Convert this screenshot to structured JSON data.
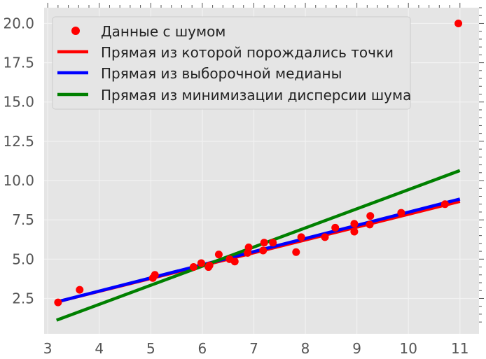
{
  "chart_data": {
    "type": "scatter",
    "title": "",
    "xlabel": "",
    "ylabel": "",
    "xlim": [
      2.93,
      11.37
    ],
    "ylim": [
      0.25,
      21.0
    ],
    "grid": true,
    "legend_placement": "top-left",
    "background_color": "#e5e5e5",
    "grid_color": "#f2f2f2",
    "x_ticks": [
      3,
      4,
      5,
      6,
      7,
      8,
      9,
      10,
      11
    ],
    "y_ticks": [
      2.5,
      5.0,
      7.5,
      10.0,
      12.5,
      15.0,
      17.5,
      20.0
    ],
    "x_tick_labels": [
      "3",
      "4",
      "5",
      "6",
      "7",
      "8",
      "9",
      "10",
      "11"
    ],
    "y_tick_labels": [
      "2.5",
      "5.0",
      "7.5",
      "10.0",
      "12.5",
      "15.0",
      "17.5",
      "20.0"
    ],
    "points": {
      "name": "Данные с шумом",
      "color": "#ff0000",
      "x": [
        3.2,
        3.62,
        5.04,
        5.08,
        5.83,
        5.98,
        6.12,
        6.14,
        6.32,
        6.53,
        6.63,
        6.88,
        6.9,
        7.18,
        7.2,
        7.37,
        7.82,
        7.92,
        8.38,
        8.58,
        8.95,
        8.95,
        9.25,
        9.26,
        9.86,
        10.71,
        10.97
      ],
      "y": [
        2.25,
        3.05,
        3.8,
        4.0,
        4.5,
        4.75,
        4.5,
        4.6,
        5.3,
        5.0,
        4.85,
        5.4,
        5.75,
        5.55,
        6.05,
        6.05,
        5.45,
        6.4,
        6.4,
        7.0,
        6.75,
        7.25,
        7.2,
        7.75,
        7.95,
        8.5,
        20.0
      ]
    },
    "lines": [
      {
        "name": "Прямая из которой порождались точки",
        "color": "#ff0000",
        "x": [
          3.2,
          10.97
        ],
        "y": [
          2.3,
          8.65
        ]
      },
      {
        "name": "Прямая из выборочной медианы",
        "color": "#0000ff",
        "x": [
          3.2,
          10.97
        ],
        "y": [
          2.3,
          8.8
        ]
      },
      {
        "name": "Прямая из минимизации дисперсии шума",
        "color": "#008000",
        "x": [
          3.2,
          10.97
        ],
        "y": [
          1.15,
          10.6
        ]
      }
    ]
  }
}
